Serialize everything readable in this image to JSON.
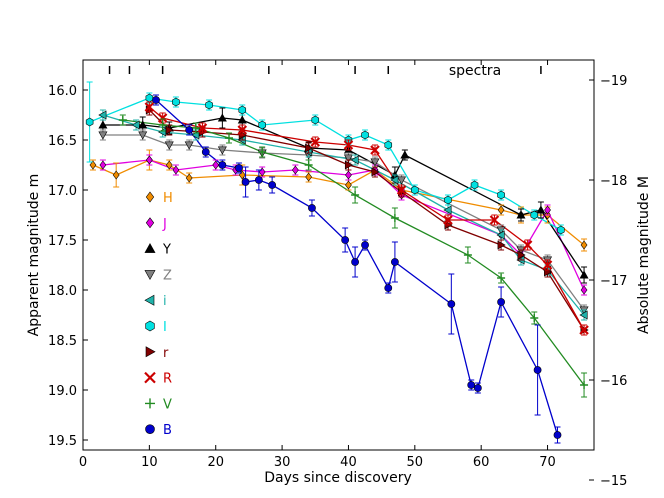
{
  "chart_data": {
    "type": "scatter",
    "xlabel": "Days since discovery",
    "ylabel": "Apparent magnitude m",
    "ylabel_right": "Absolute magnitude M",
    "xlim": [
      0,
      77
    ],
    "ylim": [
      19.6,
      15.7
    ],
    "x_ticks": [
      0,
      10,
      20,
      30,
      40,
      50,
      60,
      70
    ],
    "y_ticks": [
      16.0,
      16.5,
      17.0,
      17.5,
      18.0,
      18.5,
      19.0,
      19.5
    ],
    "y_tick_labels": [
      "16.0",
      "16.5",
      "17.0",
      "17.5",
      "18.0",
      "18.5",
      "19.0",
      "19.5"
    ],
    "right_axis": {
      "offset": 34.9,
      "ticks": [
        -19,
        -18,
        -17,
        -16,
        -15
      ]
    },
    "spectra_epochs": [
      4,
      7,
      12,
      28,
      35,
      41,
      46,
      69
    ],
    "spectra_label": "spectra",
    "series": [
      {
        "name": "H",
        "color": "#f08c00",
        "marker": "diamond",
        "x": [
          1.5,
          5,
          10,
          13,
          16,
          24,
          34,
          40,
          44,
          48,
          63,
          66,
          70,
          75.5
        ],
        "y": [
          16.75,
          16.85,
          16.7,
          16.75,
          16.88,
          16.85,
          16.87,
          16.95,
          16.8,
          17.0,
          17.2,
          17.25,
          17.25,
          17.55
        ],
        "err": [
          0.05,
          0.12,
          0.1,
          0.05,
          0.05,
          0.1,
          0.05,
          0.05,
          0.05,
          0.05,
          0.05,
          0.08,
          0.08,
          0.06
        ]
      },
      {
        "name": "J",
        "color": "#e000e0",
        "marker": "diamond",
        "x": [
          3,
          10,
          14,
          20,
          23,
          27,
          32,
          40,
          44,
          48,
          63,
          66,
          70,
          75.5
        ],
        "y": [
          16.75,
          16.7,
          16.8,
          16.75,
          16.8,
          16.82,
          16.8,
          16.85,
          16.8,
          17.05,
          17.45,
          17.65,
          17.2,
          18.0
        ],
        "err": [
          0.05,
          0.05,
          0.05,
          0.05,
          0.05,
          0.05,
          0.05,
          0.05,
          0.05,
          0.05,
          0.05,
          0.05,
          0.05,
          0.05
        ]
      },
      {
        "name": "Y",
        "color": "#000000",
        "marker": "triangle-up",
        "x": [
          3,
          9,
          13,
          21,
          24,
          34,
          40,
          47,
          48.5,
          66,
          69,
          75.5
        ],
        "y": [
          16.35,
          16.35,
          16.38,
          16.28,
          16.3,
          16.58,
          16.6,
          16.85,
          16.65,
          17.25,
          17.2,
          17.85
        ],
        "err": [
          0.05,
          0.08,
          0.06,
          0.1,
          0.12,
          0.06,
          0.08,
          0.08,
          0.05,
          0.06,
          0.08,
          0.08
        ]
      },
      {
        "name": "Z",
        "color": "#808080",
        "marker": "triangle-down",
        "x": [
          3,
          9,
          13,
          16,
          21,
          27,
          34,
          40,
          44,
          48,
          63,
          66,
          70,
          75.5
        ],
        "y": [
          16.45,
          16.45,
          16.55,
          16.55,
          16.6,
          16.63,
          16.65,
          16.68,
          16.72,
          16.9,
          17.4,
          17.6,
          17.7,
          18.2
        ],
        "err": [
          0.05,
          0.05,
          0.05,
          0.05,
          0.05,
          0.05,
          0.05,
          0.05,
          0.05,
          0.05,
          0.05,
          0.05,
          0.05,
          0.05
        ]
      },
      {
        "name": "i",
        "color": "#20b2aa",
        "marker": "triangle-left",
        "x": [
          3,
          8,
          12,
          17,
          24,
          34,
          41,
          47,
          55,
          63,
          66,
          70,
          75.5
        ],
        "y": [
          16.25,
          16.35,
          16.42,
          16.45,
          16.5,
          16.62,
          16.7,
          16.9,
          17.2,
          17.45,
          17.7,
          17.8,
          18.25
        ],
        "err": [
          0.05,
          0.05,
          0.05,
          0.05,
          0.05,
          0.05,
          0.05,
          0.05,
          0.05,
          0.05,
          0.05,
          0.05,
          0.05
        ]
      },
      {
        "name": "I",
        "color": "#00e0e0",
        "marker": "hexagon",
        "x": [
          1,
          10,
          14,
          19,
          24,
          27,
          35,
          40,
          42.5,
          46,
          50,
          55,
          59,
          63,
          68,
          72
        ],
        "y": [
          16.32,
          16.08,
          16.12,
          16.15,
          16.2,
          16.35,
          16.3,
          16.5,
          16.45,
          16.55,
          17.0,
          17.1,
          16.95,
          17.05,
          17.25,
          17.4
        ],
        "err": [
          0.4,
          0.05,
          0.05,
          0.05,
          0.05,
          0.05,
          0.05,
          0.05,
          0.05,
          0.05,
          0.05,
          0.05,
          0.05,
          0.05,
          0.05,
          0.05
        ]
      },
      {
        "name": "r",
        "color": "#800000",
        "marker": "triangle-right",
        "x": [
          10,
          13,
          18,
          24,
          34,
          40,
          44,
          48,
          55,
          63,
          66,
          70,
          75.5
        ],
        "y": [
          16.2,
          16.4,
          16.42,
          16.45,
          16.58,
          16.75,
          16.82,
          17.02,
          17.35,
          17.55,
          17.65,
          17.82,
          18.4
        ],
        "err": [
          0.05,
          0.05,
          0.05,
          0.05,
          0.05,
          0.05,
          0.05,
          0.05,
          0.05,
          0.05,
          0.05,
          0.05,
          0.05
        ]
      },
      {
        "name": "R",
        "color": "#cc0000",
        "marker": "x",
        "x": [
          10,
          12,
          18,
          24,
          35,
          40,
          44,
          48,
          55,
          62,
          67,
          70,
          75.5
        ],
        "y": [
          16.17,
          16.28,
          16.38,
          16.4,
          16.52,
          16.55,
          16.6,
          17.0,
          17.3,
          17.3,
          17.55,
          17.75,
          18.4
        ],
        "err": [
          0.05,
          0.05,
          0.05,
          0.05,
          0.05,
          0.05,
          0.05,
          0.05,
          0.05,
          0.05,
          0.05,
          0.05,
          0.05
        ]
      },
      {
        "name": "V",
        "color": "#228b22",
        "marker": "plus",
        "x": [
          6,
          12,
          17,
          22,
          27,
          34,
          41,
          47,
          58,
          63,
          68,
          75.5
        ],
        "y": [
          16.3,
          16.35,
          16.38,
          16.48,
          16.62,
          16.75,
          17.05,
          17.28,
          17.65,
          17.88,
          18.28,
          18.95
        ],
        "err": [
          0.05,
          0.06,
          0.05,
          0.05,
          0.05,
          0.05,
          0.08,
          0.1,
          0.08,
          0.05,
          0.06,
          0.12
        ]
      },
      {
        "name": "B",
        "color": "#0000cc",
        "marker": "circle",
        "x": [
          11,
          16,
          18.5,
          21,
          23.5,
          24.5,
          26.5,
          28.5,
          34.5,
          39.5,
          41,
          42.5,
          46,
          47,
          55.5,
          58.5,
          59.5,
          63,
          68.5,
          71.5
        ],
        "y": [
          16.1,
          16.4,
          16.62,
          16.75,
          16.78,
          16.92,
          16.9,
          16.95,
          17.18,
          17.5,
          17.72,
          17.55,
          17.98,
          17.72,
          18.14,
          18.95,
          18.98,
          18.12,
          18.8,
          19.45
        ],
        "err": [
          0.05,
          0.05,
          0.05,
          0.05,
          0.05,
          0.15,
          0.1,
          0.08,
          0.08,
          0.12,
          0.15,
          0.05,
          0.05,
          0.2,
          0.3,
          0.05,
          0.05,
          0.15,
          0.45,
          0.08
        ]
      }
    ],
    "legend": {
      "placement": "left-center",
      "order": [
        "H",
        "J",
        "Y",
        "Z",
        "i",
        "I",
        "r",
        "R",
        "V",
        "B"
      ]
    }
  }
}
